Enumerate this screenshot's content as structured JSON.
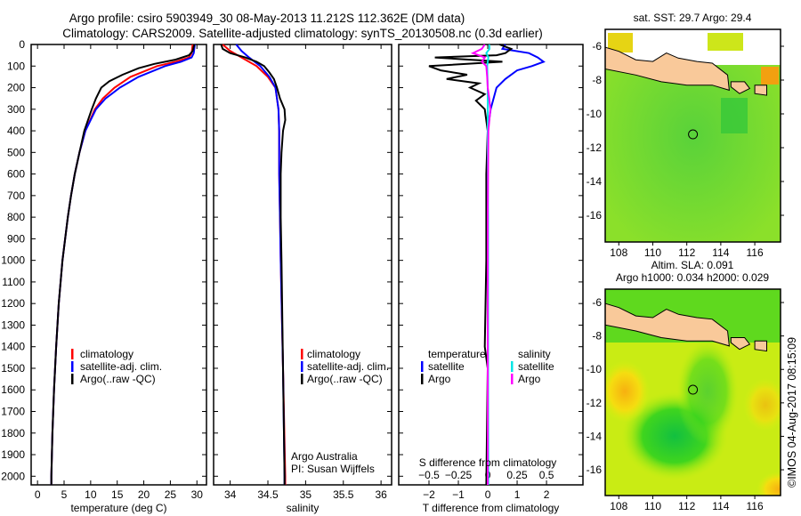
{
  "title_line1": "Argo profile: csiro 5903949_30 08-May-2013 11.212S 112.362E (DM data)",
  "title_line2": "Climatology: CARS2009. Satellite-adjusted climatology: synTS_20130508.nc (0.3d earlier)",
  "colors": {
    "climatology": "#ff0000",
    "satellite": "#0000ff",
    "argo": "#000000",
    "sal_satellite": "#00e5e5",
    "sal_argo": "#ff00ff",
    "land": "#f9c99a"
  },
  "chart_data": [
    {
      "type": "line",
      "xlabel": "temperature (deg C)",
      "ylabel": "",
      "xlim": [
        -1.2,
        31.8
      ],
      "ylim": [
        2040,
        0
      ],
      "xticks": [
        0,
        5,
        10,
        15,
        20,
        25,
        30
      ],
      "yticks": [
        0,
        100,
        200,
        300,
        400,
        500,
        600,
        700,
        800,
        900,
        1000,
        1100,
        1200,
        1300,
        1400,
        1500,
        1600,
        1700,
        1800,
        1900,
        2000
      ],
      "legend": [
        "climatology",
        "satellite-adj. clim.",
        "Argo(..raw -QC)"
      ],
      "series": [
        {
          "name": "climatology",
          "color": "#ff0000",
          "depth": [
            0,
            40,
            60,
            80,
            100,
            150,
            200,
            250,
            300,
            400,
            500,
            600,
            700,
            800,
            900,
            1000,
            1200,
            1400,
            1600,
            1800,
            2000,
            2040
          ],
          "values": [
            29.2,
            29,
            28.5,
            26,
            22.5,
            17.5,
            14.5,
            12.3,
            10.8,
            9,
            7.9,
            7,
            6.3,
            5.7,
            5.2,
            4.7,
            4,
            3.5,
            3.1,
            2.8,
            2.6,
            2.6
          ]
        },
        {
          "name": "satellite-adj. clim.",
          "color": "#0000ff",
          "depth": [
            0,
            40,
            60,
            80,
            100,
            150,
            200,
            250,
            300,
            400,
            500,
            600,
            700,
            800,
            900,
            1000,
            1200,
            1400,
            1600,
            1800,
            2000,
            2040
          ],
          "values": [
            29.6,
            29.4,
            29,
            27,
            24,
            19,
            15.5,
            12.8,
            11,
            9,
            7.9,
            7,
            6.3,
            5.7,
            5.2,
            4.7,
            4,
            3.5,
            3.1,
            2.8,
            2.6,
            2.6
          ]
        },
        {
          "name": "Argo(..raw -QC)",
          "color": "#000000",
          "depth": [
            0,
            10,
            30,
            50,
            70,
            90,
            110,
            140,
            170,
            200,
            250,
            300,
            350,
            400,
            500,
            600,
            700,
            800,
            900,
            1000,
            1200,
            1400,
            1600,
            1800,
            2000,
            2040
          ],
          "values": [
            29.5,
            29.4,
            29.2,
            28.5,
            26,
            22,
            19,
            16,
            13.5,
            12,
            11,
            10.2,
            9.5,
            8.8,
            7.9,
            7,
            6.3,
            5.7,
            5.2,
            4.7,
            4,
            3.5,
            3.1,
            2.8,
            2.6,
            2.6
          ]
        }
      ]
    },
    {
      "type": "line",
      "xlabel": "salinity",
      "xlim": [
        33.78,
        36.14
      ],
      "ylim": [
        2040,
        0
      ],
      "xticks": [
        34,
        34.5,
        35,
        35.5,
        36
      ],
      "legend": [
        "climatology",
        "satellite-adj. clim.",
        "Argo(..raw -QC)"
      ],
      "annotation": [
        "Argo Australia",
        "PI: Susan Wijffels"
      ],
      "series": [
        {
          "name": "climatology",
          "color": "#ff0000",
          "depth": [
            0,
            30,
            60,
            100,
            150,
            200,
            300,
            400,
            600,
            800,
            1000,
            1500,
            2000,
            2040
          ],
          "values": [
            33.9,
            34.0,
            34.15,
            34.35,
            34.5,
            34.6,
            34.64,
            34.65,
            34.65,
            34.66,
            34.67,
            34.7,
            34.73,
            34.73
          ]
        },
        {
          "name": "satellite-adj. clim.",
          "color": "#0000ff",
          "depth": [
            0,
            30,
            60,
            100,
            150,
            200,
            300,
            400,
            600,
            800,
            1000,
            1500,
            2000,
            2040
          ],
          "values": [
            34.08,
            34.15,
            34.25,
            34.4,
            34.52,
            34.6,
            34.64,
            34.65,
            34.65,
            34.66,
            34.67,
            34.7,
            34.72,
            34.72
          ]
        },
        {
          "name": "Argo(..raw -QC)",
          "color": "#000000",
          "depth": [
            0,
            20,
            40,
            60,
            80,
            100,
            130,
            160,
            200,
            250,
            300,
            350,
            400,
            500,
            600,
            800,
            1000,
            1500,
            2000,
            2040
          ],
          "values": [
            33.88,
            33.9,
            34.0,
            34.2,
            34.35,
            34.45,
            34.52,
            34.58,
            34.62,
            34.66,
            34.72,
            34.73,
            34.7,
            34.68,
            34.67,
            34.67,
            34.68,
            34.7,
            34.72,
            34.72
          ]
        }
      ]
    },
    {
      "type": "line",
      "xlabel": "T difference from climatology",
      "x2label": "S difference from climatology",
      "xlim": [
        -3.03,
        3.24
      ],
      "ylim": [
        2040,
        0
      ],
      "xticks": [
        -2,
        -1,
        0,
        1,
        2
      ],
      "x2ticks": [
        "-0.5",
        "-0.25",
        "0",
        "0.25",
        "0.5"
      ],
      "x2tick_values": [
        -0.5,
        -0.25,
        0,
        0.25,
        0.5
      ],
      "legend_headers": [
        "temperature",
        "salinity"
      ],
      "legend": [
        "satellite",
        "Argo",
        "satellite",
        "Argo"
      ],
      "series": [
        {
          "name": "temperature satellite",
          "color": "#0000ff",
          "depth": [
            0,
            20,
            40,
            60,
            80,
            100,
            120,
            160,
            200,
            300,
            400,
            600,
            1000,
            2040
          ],
          "values": [
            0.6,
            0.5,
            1.4,
            1.7,
            1.9,
            1.5,
            1.0,
            0.6,
            0.3,
            0.1,
            0,
            0,
            0,
            0
          ]
        },
        {
          "name": "temperature Argo",
          "color": "#000000",
          "depth": [
            0,
            20,
            40,
            50,
            60,
            80,
            100,
            120,
            140,
            160,
            180,
            200,
            230,
            260,
            300,
            400,
            600,
            1000,
            1400,
            1500,
            2040
          ],
          "values": [
            0.4,
            0.8,
            0.6,
            0.3,
            -1.8,
            0.5,
            -2.0,
            -1.6,
            -0.7,
            -1.4,
            -0.3,
            -0.6,
            -0.1,
            -0.4,
            -0.1,
            0,
            -0.05,
            -0.05,
            -0.1,
            0,
            -0.05
          ]
        },
        {
          "name": "salinity satellite",
          "color": "#00e5e5",
          "depth": [
            0,
            20,
            40,
            60,
            100,
            150,
            200,
            300,
            500,
            800,
            1200,
            1600,
            2040
          ],
          "values": [
            0.05,
            0.06,
            -0.05,
            0.02,
            -0.02,
            -0.01,
            0,
            0,
            0,
            0.01,
            0.01,
            0.01,
            0.02
          ]
        },
        {
          "name": "salinity Argo",
          "color": "#ff00ff",
          "depth": [
            0,
            20,
            40,
            60,
            80,
            100,
            150,
            200,
            250,
            300,
            400,
            600,
            800,
            1200,
            1600,
            2040
          ],
          "values": [
            -0.1,
            -0.2,
            -0.5,
            -0.1,
            -0.2,
            -0.05,
            -0.02,
            0,
            0.05,
            0.09,
            0.02,
            0.01,
            0,
            0,
            0,
            0
          ]
        }
      ]
    }
  ],
  "maps": [
    {
      "title": "sat. SST: 29.7 Argo: 29.4",
      "xticks": [
        "108",
        "110",
        "112",
        "114",
        "116"
      ],
      "yticks": [
        "-6",
        "-8",
        "-10",
        "-12",
        "-14",
        "-16"
      ]
    },
    {
      "title_line1": "Altim. SLA: 0.091",
      "title_line2": "Argo h1000: 0.034 h2000: 0.029",
      "xticks": [
        "108",
        "110",
        "112",
        "114",
        "116"
      ],
      "yticks": [
        "-6",
        "-8",
        "-10",
        "-12",
        "-14",
        "-16"
      ]
    }
  ],
  "profile_location": {
    "lon": 112.362,
    "lat": -11.212
  },
  "credit": "©IMOS 04-Aug-2017 08:15:09"
}
